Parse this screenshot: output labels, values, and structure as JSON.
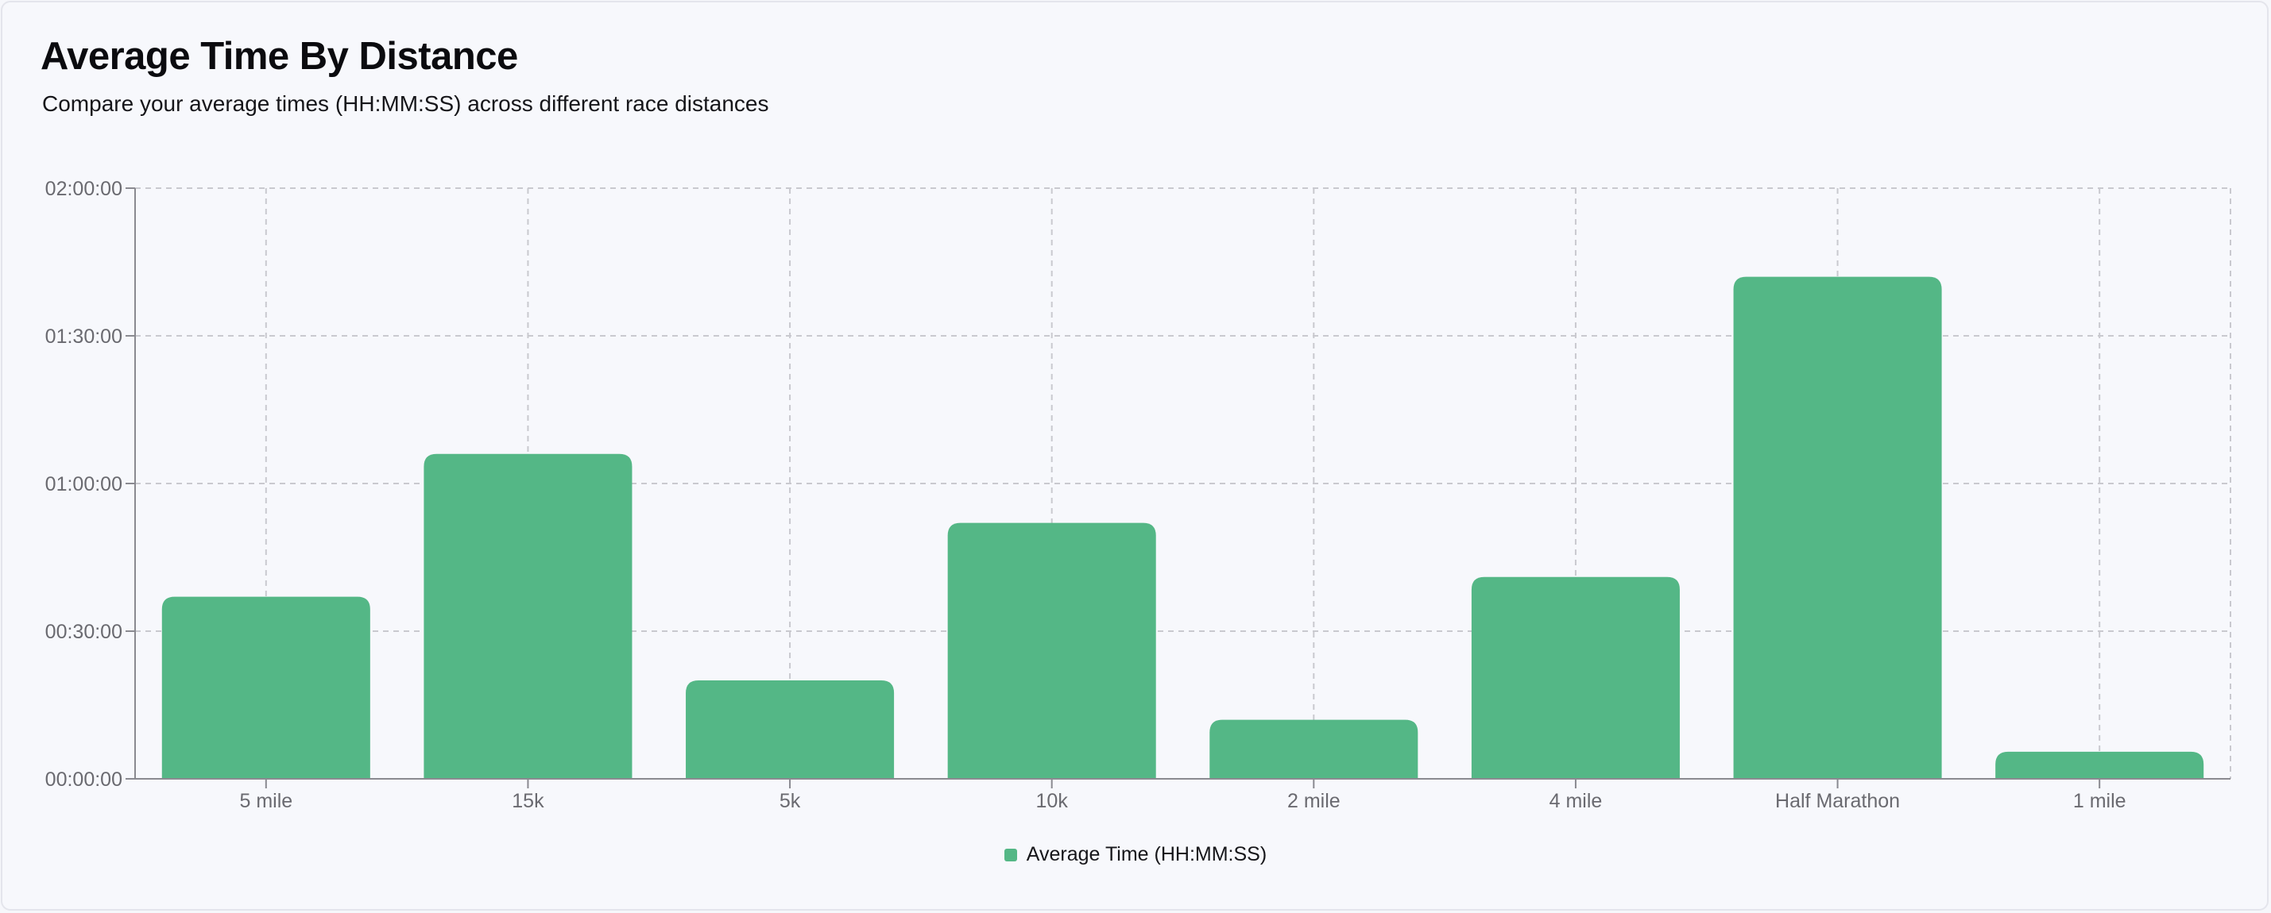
{
  "header": {
    "title": "Average Time By Distance",
    "subtitle": "Compare your average times (HH:MM:SS) across different race distances"
  },
  "colors": {
    "bar": "#54b786",
    "grid": "#c9c9cf",
    "axis": "#8a8a90",
    "tick_text": "#6a6a70"
  },
  "chart_data": {
    "type": "bar",
    "categories": [
      "5 mile",
      "15k",
      "5k",
      "10k",
      "2 mile",
      "4 mile",
      "Half Marathon",
      "1 mile"
    ],
    "series": [
      {
        "name": "Average Time (HH:MM:SS)",
        "values": [
          2220,
          3960,
          1200,
          3120,
          720,
          2460,
          6120,
          330
        ]
      }
    ],
    "value_unit": "seconds",
    "y_ticks": [
      "00:00:00",
      "00:30:00",
      "01:00:00",
      "01:30:00",
      "02:00:00"
    ],
    "ylim": [
      0,
      7200
    ],
    "grid": true,
    "legend_position": "bottom-center"
  },
  "legend": {
    "label": "Average Time (HH:MM:SS)"
  }
}
